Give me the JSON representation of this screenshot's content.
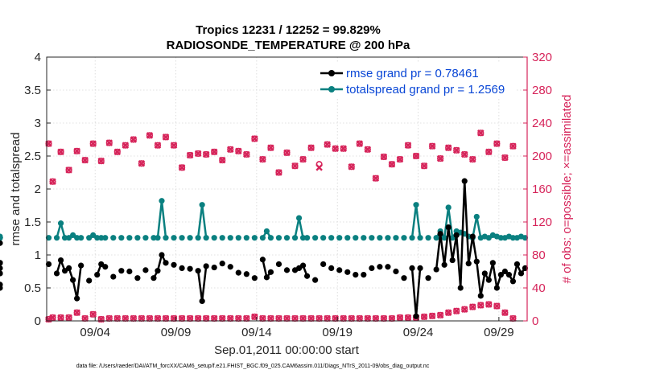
{
  "chart_data": {
    "type": "line",
    "title": "Tropics 12231 / 12252 = 99.829%",
    "subtitle": "RADIOSONDE_TEMPERATURE @ 200 hPa",
    "xlabel": "Sep.01,2011 00:00:00 start",
    "ylabel": "rmse and totalspread",
    "y2label": "# of obs: o=possible; ×=assimilated",
    "footnote": "data file: /Users/raeder/DAI/ATM_forcXX/CAM6_setup/f.e21.FHIST_BGC.f09_025.CAM6assim.011/Diags_NTrS_2011-09/obs_diag_output.nc",
    "xlim": [
      0.5,
      30.25
    ],
    "ylim": [
      0,
      4
    ],
    "y2lim": [
      0,
      320
    ],
    "x_ticks": [
      3.5,
      8.5,
      13.5,
      18.5,
      23.5,
      28.5
    ],
    "x_tick_labels": [
      "09/04",
      "09/09",
      "09/14",
      "09/19",
      "09/24",
      "09/29"
    ],
    "y_ticks": [
      0,
      0.5,
      1,
      1.5,
      2,
      2.5,
      3,
      3.5,
      4
    ],
    "y_tick_labels": [
      "0",
      "0.5",
      "1",
      "1.5",
      "2",
      "2.5",
      "3",
      "3.5",
      "4"
    ],
    "y2_ticks": [
      0,
      40,
      80,
      120,
      160,
      200,
      240,
      280,
      320
    ],
    "y2_tick_labels": [
      "0",
      "40",
      "80",
      "120",
      "160",
      "200",
      "240",
      "280",
      "320"
    ],
    "colors": {
      "rmse": "#000000",
      "spread": "#0a8080",
      "obs": "#d6245a",
      "legend_text": "#0a47d6",
      "axis": "#262626"
    },
    "legend": [
      {
        "name": "rmse",
        "label": "rmse grand pr = 0.78461"
      },
      {
        "name": "spread",
        "label": "totalspread grand pr = 1.2569"
      }
    ],
    "x": [
      0.625,
      0.875,
      1.125,
      1.375,
      1.625,
      1.875,
      2.125,
      2.375,
      2.625,
      2.875,
      3.125,
      3.375,
      3.625,
      3.875,
      4.125,
      4.375,
      4.625,
      4.875,
      5.125,
      5.375,
      5.625,
      5.875,
      6.125,
      6.375,
      6.625,
      6.875,
      7.125,
      7.375,
      7.625,
      7.875,
      8.125,
      8.375,
      8.625,
      8.875,
      9.125,
      9.375,
      9.625,
      9.875,
      10.125,
      10.375,
      10.625,
      10.875,
      11.125,
      11.375,
      11.625,
      11.875,
      12.125,
      12.375,
      12.625,
      12.875,
      13.125,
      13.375,
      13.625,
      13.875,
      14.125,
      14.375,
      14.625,
      14.875,
      15.125,
      15.375,
      15.625,
      15.875,
      16.125,
      16.375,
      16.625,
      16.875,
      17.125,
      17.375,
      17.625,
      17.875,
      18.125,
      18.375,
      18.625,
      18.875,
      19.125,
      19.375,
      19.625,
      19.875,
      20.125,
      20.375,
      20.625,
      20.875,
      21.125,
      21.375,
      21.625,
      21.875,
      22.125,
      22.375,
      22.625,
      22.875,
      23.125,
      23.375,
      23.625,
      23.875,
      24.125,
      24.375,
      24.625,
      24.875,
      25.125,
      25.375,
      25.625,
      25.875,
      26.125,
      26.375,
      26.625,
      26.875,
      27.125,
      27.375,
      27.625,
      27.875,
      28.125,
      28.375,
      28.625,
      28.875,
      29.125,
      29.375,
      29.625,
      29.875,
      30.125
    ],
    "rmse": [
      0.86,
      null,
      0.72,
      0.92,
      0.76,
      0.8,
      0.62,
      0.34,
      0.84,
      null,
      0.61,
      null,
      0.7,
      0.86,
      0.82,
      null,
      0.67,
      null,
      0.76,
      null,
      0.75,
      null,
      0.65,
      null,
      0.77,
      null,
      0.65,
      0.76,
      1.0,
      0.88,
      null,
      0.85,
      null,
      0.8,
      null,
      0.79,
      null,
      0.76,
      0.3,
      0.83,
      null,
      0.81,
      null,
      0.87,
      null,
      0.82,
      null,
      0.73,
      null,
      0.71,
      null,
      0.65,
      null,
      0.93,
      0.66,
      0.74,
      null,
      0.86,
      null,
      0.77,
      null,
      0.77,
      0.8,
      0.84,
      0.68,
      null,
      0.62,
      null,
      0.86,
      null,
      0.8,
      null,
      0.77,
      null,
      0.74,
      null,
      0.7,
      null,
      0.7,
      null,
      0.8,
      null,
      0.82,
      null,
      0.82,
      null,
      0.75,
      null,
      0.65,
      null,
      0.8,
      0.07,
      0.8,
      null,
      0.65,
      null,
      0.78,
      1.32,
      0.85,
      1.42,
      0.92,
      1.3,
      0.5,
      2.12,
      0.87,
      1.28,
      0.9,
      0.38,
      0.72,
      0.62,
      0.88,
      0.5,
      0.7,
      0.75,
      0.7,
      0.6,
      0.86,
      0.72,
      0.8,
      0.72,
      1.18,
      0.72,
      0.55,
      0.8,
      0.5,
      0.88,
      0.88
    ],
    "spread": [
      1.26,
      null,
      1.26,
      1.48,
      1.26,
      1.26,
      1.3,
      1.26,
      1.26,
      null,
      1.26,
      1.3,
      1.26,
      1.26,
      1.26,
      null,
      1.26,
      null,
      1.26,
      null,
      1.26,
      null,
      1.26,
      null,
      1.26,
      null,
      1.26,
      1.26,
      1.82,
      1.26,
      null,
      1.26,
      null,
      1.26,
      null,
      1.26,
      null,
      1.26,
      1.76,
      1.26,
      null,
      1.26,
      null,
      1.26,
      null,
      1.26,
      null,
      1.26,
      null,
      1.26,
      null,
      1.26,
      null,
      1.26,
      1.36,
      1.26,
      null,
      1.26,
      null,
      1.26,
      null,
      1.26,
      1.56,
      1.26,
      1.26,
      null,
      1.26,
      null,
      1.26,
      null,
      1.26,
      null,
      1.26,
      null,
      1.26,
      null,
      1.26,
      null,
      1.26,
      null,
      1.26,
      null,
      1.26,
      null,
      1.26,
      null,
      1.26,
      null,
      1.26,
      null,
      1.26,
      1.76,
      1.26,
      null,
      1.26,
      null,
      1.26,
      1.36,
      1.26,
      1.72,
      1.26,
      1.36,
      1.34,
      1.32,
      1.28,
      1.26,
      1.58,
      1.26,
      1.28,
      1.26,
      1.3,
      1.28,
      1.26,
      1.26,
      1.28,
      1.26,
      1.26,
      1.28,
      1.26,
      1.26,
      1.26,
      1.26,
      1.26,
      1.26,
      1.28
    ],
    "obs_possible": [
      215,
      169,
      null,
      205,
      null,
      183,
      null,
      206,
      null,
      195,
      null,
      215,
      null,
      194,
      null,
      216,
      null,
      205,
      null,
      213,
      null,
      220,
      null,
      191,
      null,
      225,
      null,
      213,
      null,
      223,
      null,
      213,
      null,
      186,
      null,
      201,
      null,
      203,
      null,
      202,
      null,
      205,
      null,
      195,
      null,
      208,
      null,
      206,
      null,
      202,
      null,
      221,
      null,
      196,
      null,
      210,
      null,
      180,
      null,
      204,
      null,
      188,
      null,
      196,
      null,
      210,
      null,
      190,
      null,
      214,
      null,
      209,
      null,
      209,
      null,
      187,
      null,
      215,
      null,
      208,
      null,
      173,
      null,
      199,
      null,
      190,
      null,
      196,
      null,
      213,
      null,
      200,
      null,
      188,
      null,
      212,
      null,
      197,
      null,
      210,
      null,
      207,
      null,
      202,
      null,
      196,
      null,
      228,
      null,
      205,
      null,
      215,
      null,
      198,
      null,
      212
    ],
    "obs_assimilated": [
      215,
      169,
      null,
      205,
      null,
      183,
      null,
      206,
      null,
      195,
      null,
      215,
      null,
      194,
      null,
      216,
      null,
      205,
      null,
      213,
      null,
      220,
      null,
      191,
      null,
      225,
      null,
      213,
      null,
      223,
      null,
      213,
      null,
      186,
      null,
      201,
      null,
      203,
      null,
      202,
      null,
      205,
      null,
      195,
      null,
      208,
      null,
      206,
      null,
      202,
      null,
      221,
      null,
      196,
      null,
      210,
      null,
      180,
      null,
      204,
      null,
      188,
      null,
      196,
      null,
      210,
      null,
      186,
      null,
      214,
      null,
      209,
      null,
      209,
      null,
      187,
      null,
      215,
      null,
      208,
      null,
      173,
      null,
      199,
      null,
      190,
      null,
      196,
      null,
      213,
      null,
      200,
      null,
      188,
      null,
      212,
      null,
      197,
      null,
      210,
      null,
      207,
      null,
      202,
      null,
      196,
      null,
      228,
      null,
      205,
      null,
      215,
      null,
      198,
      null,
      212
    ],
    "obs_bottom_possible": [
      2,
      4,
      null,
      4,
      null,
      4,
      null,
      10,
      null,
      3,
      null,
      8,
      null,
      2,
      null,
      3,
      null,
      3,
      null,
      3,
      null,
      3,
      null,
      3,
      null,
      3,
      null,
      3,
      null,
      3,
      null,
      3,
      null,
      3,
      null,
      3,
      null,
      3,
      null,
      3,
      null,
      3,
      null,
      3,
      null,
      3,
      null,
      3,
      null,
      3,
      null,
      5,
      null,
      3,
      null,
      3,
      null,
      3,
      null,
      3,
      null,
      3,
      null,
      3,
      null,
      3,
      null,
      3,
      null,
      3,
      null,
      3,
      null,
      3,
      null,
      3,
      null,
      3,
      null,
      3,
      null,
      3,
      null,
      3,
      null,
      3,
      null,
      4,
      null,
      4,
      null,
      4,
      null,
      5,
      null,
      6,
      null,
      7,
      null,
      10,
      null,
      12,
      null,
      14,
      null,
      17,
      null,
      19,
      null,
      20,
      null,
      18,
      null,
      10,
      null,
      3
    ],
    "obs_bottom_assimilated": [
      2,
      4,
      null,
      4,
      null,
      4,
      null,
      10,
      null,
      3,
      null,
      8,
      null,
      2,
      null,
      3,
      null,
      3,
      null,
      3,
      null,
      3,
      null,
      3,
      null,
      3,
      null,
      3,
      null,
      3,
      null,
      3,
      null,
      3,
      null,
      3,
      null,
      3,
      null,
      3,
      null,
      3,
      null,
      3,
      null,
      3,
      null,
      3,
      null,
      3,
      null,
      5,
      null,
      3,
      null,
      3,
      null,
      3,
      null,
      3,
      null,
      3,
      null,
      3,
      null,
      3,
      null,
      3,
      null,
      3,
      null,
      3,
      null,
      3,
      null,
      3,
      null,
      3,
      null,
      3,
      null,
      3,
      null,
      3,
      null,
      3,
      null,
      4,
      null,
      4,
      null,
      4,
      null,
      5,
      null,
      6,
      null,
      7,
      null,
      10,
      null,
      12,
      null,
      14,
      null,
      17,
      null,
      19,
      null,
      20,
      null,
      18,
      null,
      10,
      null,
      3
    ]
  }
}
